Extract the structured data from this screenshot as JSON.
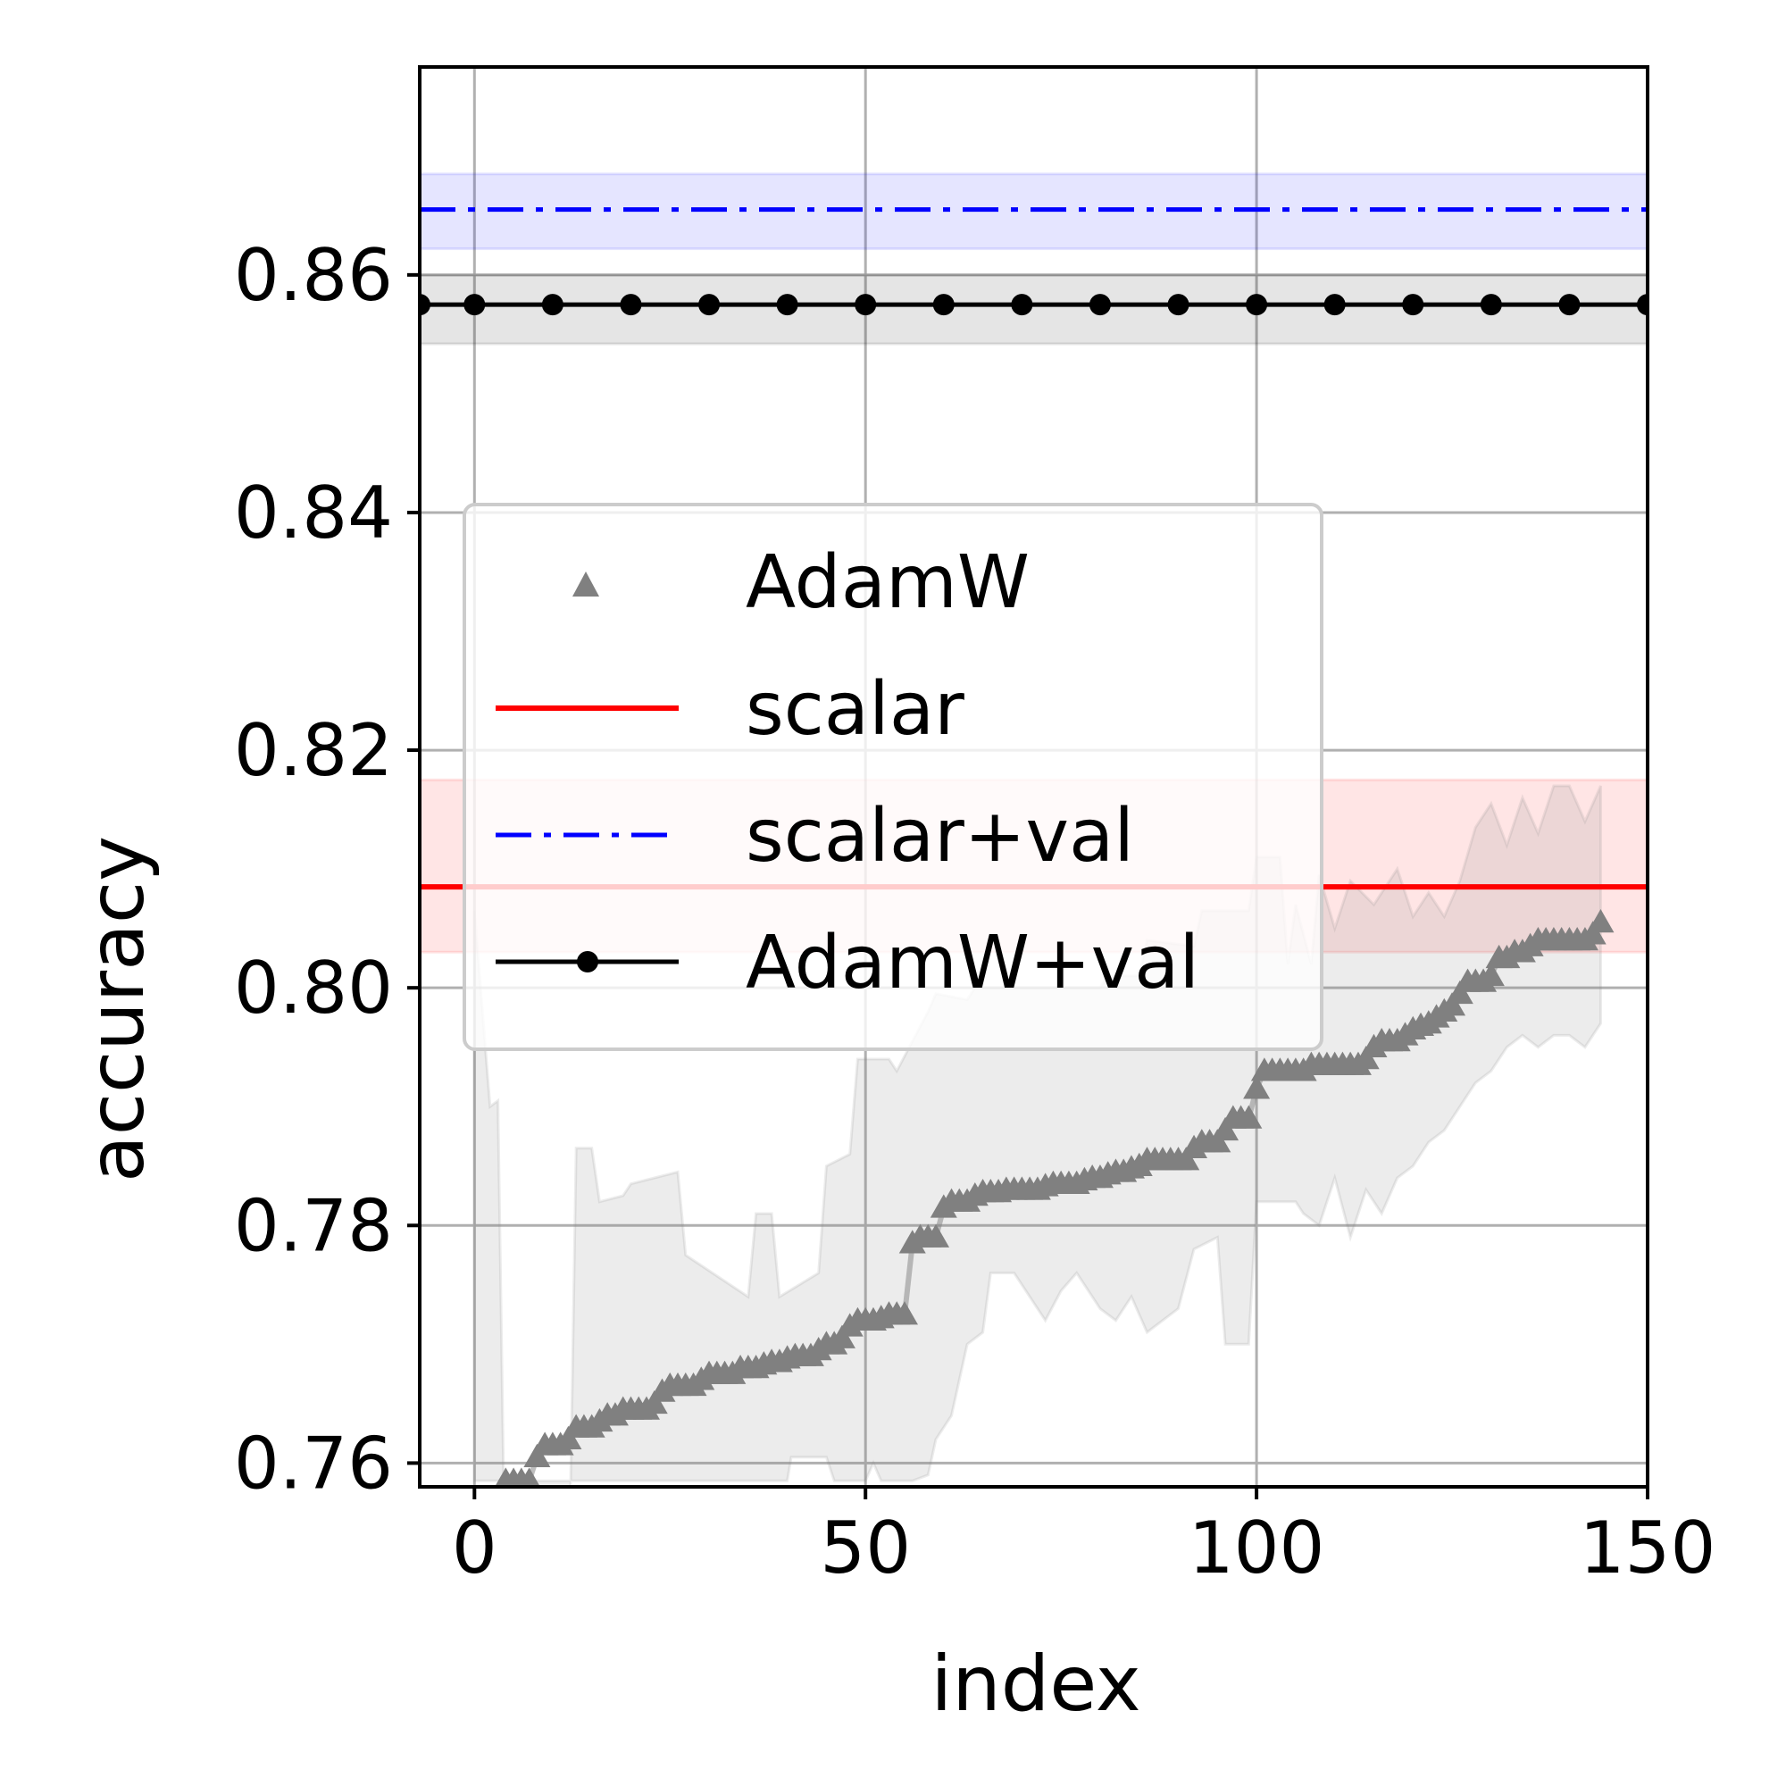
{
  "chart_data": {
    "type": "line",
    "title": "",
    "xlabel": "index",
    "ylabel": "accuracy",
    "xlim": [
      -7,
      150
    ],
    "ylim": [
      0.758,
      0.8775
    ],
    "xticks": [
      0,
      50,
      100,
      150
    ],
    "xtick_labels": [
      "0",
      "50",
      "100",
      "150"
    ],
    "yticks": [
      0.76,
      0.78,
      0.8,
      0.82,
      0.84,
      0.86
    ],
    "ytick_labels": [
      "0.76",
      "0.78",
      "0.80",
      "0.82",
      "0.84",
      "0.86"
    ],
    "grid": true,
    "legend_position": "center-left",
    "legend": [
      {
        "label": "AdamW",
        "style": "triangle-markers",
        "color": "#808080"
      },
      {
        "label": "scalar",
        "style": "solid",
        "color": "#ff0000"
      },
      {
        "label": "scalar+val",
        "style": "dash-dot",
        "color": "#0000ff"
      },
      {
        "label": "AdamW+val",
        "style": "solid-dot",
        "color": "#000000"
      }
    ],
    "series": [
      {
        "name": "AdamW",
        "color": "#808080",
        "marker": "triangle",
        "points": [
          [
            4,
            0.7585
          ],
          [
            5,
            0.7585
          ],
          [
            6,
            0.7585
          ],
          [
            7,
            0.7585
          ],
          [
            8,
            0.7605
          ],
          [
            9,
            0.7615
          ],
          [
            10,
            0.7615
          ],
          [
            11,
            0.7615
          ],
          [
            12,
            0.762
          ],
          [
            13,
            0.763
          ],
          [
            14,
            0.763
          ],
          [
            15,
            0.763
          ],
          [
            16,
            0.7635
          ],
          [
            17,
            0.764
          ],
          [
            18,
            0.764
          ],
          [
            19,
            0.7645
          ],
          [
            20,
            0.7645
          ],
          [
            21,
            0.7645
          ],
          [
            22,
            0.7645
          ],
          [
            23,
            0.765
          ],
          [
            24,
            0.766
          ],
          [
            25,
            0.7665
          ],
          [
            26,
            0.7665
          ],
          [
            27,
            0.7665
          ],
          [
            28,
            0.7665
          ],
          [
            29,
            0.767
          ],
          [
            30,
            0.7675
          ],
          [
            31,
            0.7675
          ],
          [
            32,
            0.7675
          ],
          [
            33,
            0.7675
          ],
          [
            34,
            0.768
          ],
          [
            35,
            0.768
          ],
          [
            36,
            0.768
          ],
          [
            37,
            0.7683
          ],
          [
            38,
            0.7685
          ],
          [
            39,
            0.7685
          ],
          [
            40,
            0.7688
          ],
          [
            41,
            0.769
          ],
          [
            42,
            0.769
          ],
          [
            43,
            0.769
          ],
          [
            44,
            0.7695
          ],
          [
            45,
            0.77
          ],
          [
            46,
            0.77
          ],
          [
            47,
            0.7705
          ],
          [
            48,
            0.7715
          ],
          [
            49,
            0.772
          ],
          [
            50,
            0.772
          ],
          [
            51,
            0.772
          ],
          [
            52,
            0.7722
          ],
          [
            53,
            0.7725
          ],
          [
            54,
            0.7725
          ],
          [
            55,
            0.7725
          ],
          [
            56,
            0.7785
          ],
          [
            57,
            0.779
          ],
          [
            58,
            0.779
          ],
          [
            59,
            0.779
          ],
          [
            60,
            0.7815
          ],
          [
            61,
            0.782
          ],
          [
            62,
            0.782
          ],
          [
            63,
            0.782
          ],
          [
            64,
            0.7825
          ],
          [
            65,
            0.7828
          ],
          [
            66,
            0.7828
          ],
          [
            67,
            0.7828
          ],
          [
            68,
            0.783
          ],
          [
            69,
            0.783
          ],
          [
            70,
            0.783
          ],
          [
            71,
            0.783
          ],
          [
            72,
            0.783
          ],
          [
            73,
            0.7833
          ],
          [
            74,
            0.7835
          ],
          [
            75,
            0.7835
          ],
          [
            76,
            0.7835
          ],
          [
            77,
            0.7835
          ],
          [
            78,
            0.7838
          ],
          [
            79,
            0.784
          ],
          [
            80,
            0.784
          ],
          [
            81,
            0.7843
          ],
          [
            82,
            0.7845
          ],
          [
            83,
            0.7845
          ],
          [
            84,
            0.7848
          ],
          [
            85,
            0.785
          ],
          [
            86,
            0.7855
          ],
          [
            87,
            0.7855
          ],
          [
            88,
            0.7855
          ],
          [
            89,
            0.7855
          ],
          [
            90,
            0.7855
          ],
          [
            91,
            0.7855
          ],
          [
            92,
            0.7865
          ],
          [
            93,
            0.787
          ],
          [
            94,
            0.787
          ],
          [
            95,
            0.787
          ],
          [
            96,
            0.788
          ],
          [
            97,
            0.789
          ],
          [
            98,
            0.789
          ],
          [
            99,
            0.789
          ],
          [
            100,
            0.7915
          ],
          [
            101,
            0.793
          ],
          [
            102,
            0.793
          ],
          [
            103,
            0.793
          ],
          [
            104,
            0.793
          ],
          [
            105,
            0.793
          ],
          [
            106,
            0.793
          ],
          [
            107,
            0.7935
          ],
          [
            108,
            0.7935
          ],
          [
            109,
            0.7935
          ],
          [
            110,
            0.7935
          ],
          [
            111,
            0.7935
          ],
          [
            112,
            0.7935
          ],
          [
            113,
            0.7935
          ],
          [
            114,
            0.794
          ],
          [
            115,
            0.795
          ],
          [
            116,
            0.7955
          ],
          [
            117,
            0.7955
          ],
          [
            118,
            0.7955
          ],
          [
            119,
            0.796
          ],
          [
            120,
            0.7965
          ],
          [
            121,
            0.7968
          ],
          [
            122,
            0.797
          ],
          [
            123,
            0.7975
          ],
          [
            124,
            0.798
          ],
          [
            125,
            0.7985
          ],
          [
            126,
            0.7995
          ],
          [
            127,
            0.8005
          ],
          [
            128,
            0.8005
          ],
          [
            129,
            0.8005
          ],
          [
            130,
            0.801
          ],
          [
            131,
            0.8025
          ],
          [
            132,
            0.8025
          ],
          [
            133,
            0.803
          ],
          [
            134,
            0.803
          ],
          [
            135,
            0.8035
          ],
          [
            136,
            0.804
          ],
          [
            137,
            0.804
          ],
          [
            138,
            0.804
          ],
          [
            139,
            0.804
          ],
          [
            140,
            0.804
          ],
          [
            141,
            0.804
          ],
          [
            142,
            0.804
          ],
          [
            143,
            0.8045
          ],
          [
            144,
            0.8055
          ]
        ],
        "band_upper": [
          [
            0,
            0.8065
          ],
          [
            2,
            0.79
          ],
          [
            3,
            0.7905
          ],
          [
            4,
            0.747
          ],
          [
            10,
            0.747
          ],
          [
            12,
            0.7465
          ],
          [
            13,
            0.7865
          ],
          [
            15,
            0.7865
          ],
          [
            16,
            0.782
          ],
          [
            19,
            0.7825
          ],
          [
            20,
            0.7835
          ],
          [
            26,
            0.7845
          ],
          [
            27,
            0.7775
          ],
          [
            35,
            0.774
          ],
          [
            36,
            0.781
          ],
          [
            38,
            0.781
          ],
          [
            39,
            0.774
          ],
          [
            44,
            0.776
          ],
          [
            45,
            0.785
          ],
          [
            48,
            0.786
          ],
          [
            49,
            0.794
          ],
          [
            53,
            0.794
          ],
          [
            54,
            0.793
          ],
          [
            58,
            0.798
          ],
          [
            59,
            0.7995
          ],
          [
            63,
            0.799
          ],
          [
            64,
            0.8
          ],
          [
            80,
            0.8
          ],
          [
            81,
            0.801
          ],
          [
            85,
            0.801
          ],
          [
            86,
            0.804
          ],
          [
            92,
            0.8035
          ],
          [
            93,
            0.8065
          ],
          [
            99,
            0.8065
          ],
          [
            100,
            0.811
          ],
          [
            103,
            0.811
          ],
          [
            104,
            0.802
          ],
          [
            105,
            0.807
          ],
          [
            107,
            0.802
          ],
          [
            108,
            0.8095
          ],
          [
            110,
            0.805
          ],
          [
            112,
            0.809
          ],
          [
            115,
            0.807
          ],
          [
            118,
            0.81
          ],
          [
            120,
            0.806
          ],
          [
            122,
            0.808
          ],
          [
            124,
            0.806
          ],
          [
            126,
            0.809
          ],
          [
            128,
            0.8135
          ],
          [
            130,
            0.8155
          ],
          [
            132,
            0.812
          ],
          [
            134,
            0.816
          ],
          [
            136,
            0.813
          ],
          [
            138,
            0.817
          ],
          [
            140,
            0.817
          ],
          [
            142,
            0.814
          ],
          [
            144,
            0.817
          ]
        ],
        "band_lower": [
          [
            0,
            0.7585
          ],
          [
            4,
            0.7585
          ],
          [
            6,
            0.7585
          ],
          [
            8,
            0.7585
          ],
          [
            40,
            0.7585
          ],
          [
            40.5,
            0.7605
          ],
          [
            45,
            0.7605
          ],
          [
            46,
            0.7585
          ],
          [
            49,
            0.7585
          ],
          [
            50,
            0.7585
          ],
          [
            51,
            0.76
          ],
          [
            52,
            0.7585
          ],
          [
            56,
            0.7585
          ],
          [
            58,
            0.759
          ],
          [
            59,
            0.762
          ],
          [
            61,
            0.764
          ],
          [
            63,
            0.77
          ],
          [
            65,
            0.771
          ],
          [
            66,
            0.776
          ],
          [
            69,
            0.776
          ],
          [
            71,
            0.774
          ],
          [
            73,
            0.772
          ],
          [
            75,
            0.7745
          ],
          [
            77,
            0.776
          ],
          [
            80,
            0.773
          ],
          [
            82,
            0.772
          ],
          [
            84,
            0.774
          ],
          [
            86,
            0.771
          ],
          [
            90,
            0.773
          ],
          [
            92,
            0.778
          ],
          [
            95,
            0.779
          ],
          [
            96,
            0.77
          ],
          [
            99,
            0.77
          ],
          [
            100,
            0.782
          ],
          [
            103,
            0.782
          ],
          [
            105,
            0.782
          ],
          [
            106,
            0.781
          ],
          [
            108,
            0.78
          ],
          [
            110,
            0.784
          ],
          [
            112,
            0.779
          ],
          [
            114,
            0.783
          ],
          [
            116,
            0.781
          ],
          [
            118,
            0.784
          ],
          [
            120,
            0.785
          ],
          [
            122,
            0.787
          ],
          [
            124,
            0.788
          ],
          [
            126,
            0.79
          ],
          [
            128,
            0.792
          ],
          [
            130,
            0.793
          ],
          [
            132,
            0.795
          ],
          [
            134,
            0.796
          ],
          [
            136,
            0.795
          ],
          [
            138,
            0.796
          ],
          [
            140,
            0.796
          ],
          [
            142,
            0.795
          ],
          [
            144,
            0.797
          ]
        ]
      },
      {
        "name": "scalar",
        "color": "#ff0000",
        "style": "solid",
        "value": 0.8085,
        "band": [
          0.803,
          0.8175
        ]
      },
      {
        "name": "scalar+val",
        "color": "#0000ff",
        "style": "dash-dot",
        "value": 0.8655,
        "band": [
          0.8622,
          0.8685
        ]
      },
      {
        "name": "AdamW+val",
        "color": "#000000",
        "style": "solid-dot",
        "value": 0.8575,
        "band": [
          0.8542,
          0.86
        ],
        "marker_x": [
          -7,
          0,
          10,
          20,
          30,
          40,
          50,
          60,
          70,
          80,
          90,
          100,
          110,
          120,
          130,
          140,
          150
        ]
      }
    ]
  }
}
